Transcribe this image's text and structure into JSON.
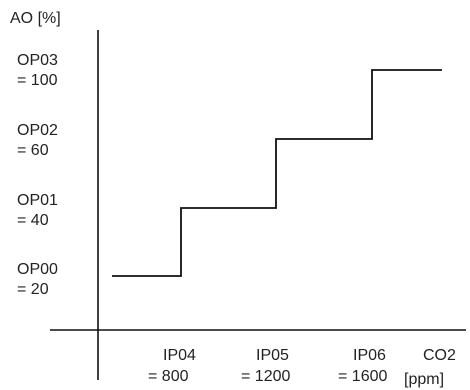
{
  "chart_data": {
    "type": "line",
    "step": true,
    "title": "",
    "ylabel": "AO [%]",
    "xlabel": {
      "line1": "CO2",
      "line2": "[ppm]"
    },
    "y_levels": [
      {
        "line1": "OP03",
        "line2": "= 100",
        "value": 100
      },
      {
        "line1": "OP02",
        "line2": "= 60",
        "value": 60
      },
      {
        "line1": "OP01",
        "line2": "= 40",
        "value": 40
      },
      {
        "line1": "OP00",
        "line2": "= 20",
        "value": 20
      }
    ],
    "x_points": [
      {
        "line1": "IP04",
        "line2": "= 800",
        "value": 800
      },
      {
        "line1": "IP05",
        "line2": "= 1200",
        "value": 1200
      },
      {
        "line1": "IP06",
        "line2": "= 1600",
        "value": 1600
      }
    ],
    "series": [
      {
        "values": [
          [
            600,
            20
          ],
          [
            800,
            20
          ],
          [
            800,
            40
          ],
          [
            1200,
            40
          ],
          [
            1200,
            60
          ],
          [
            1600,
            60
          ],
          [
            1600,
            100
          ],
          [
            1900,
            100
          ]
        ]
      }
    ],
    "grid": false,
    "legend": "none",
    "colors": {
      "line": "#111111",
      "axis": "#111111",
      "text": "#222222"
    }
  }
}
